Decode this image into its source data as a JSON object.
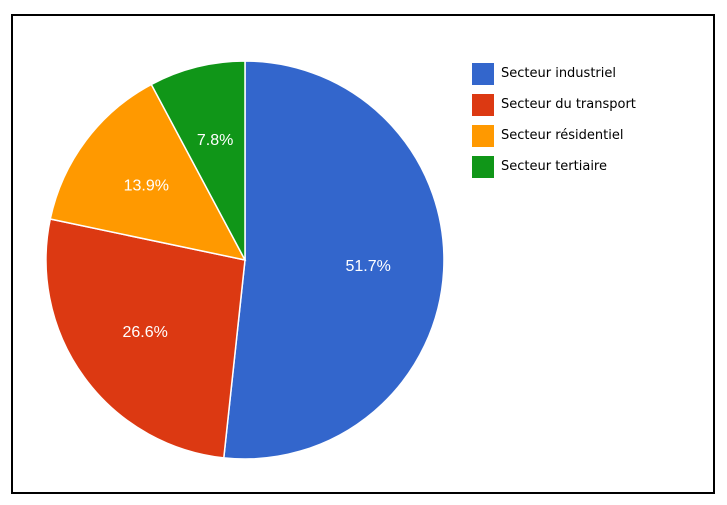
{
  "chart_data": {
    "type": "pie",
    "title": "",
    "legend_position": "right",
    "slices": [
      {
        "label": "Secteur industriel",
        "value": 51.7,
        "value_label": "51.7%",
        "color": "#3366cc"
      },
      {
        "label": "Secteur du transport",
        "value": 26.6,
        "value_label": "26.6%",
        "color": "#dc3912"
      },
      {
        "label": "Secteur résidentiel",
        "value": 13.9,
        "value_label": "13.9%",
        "color": "#ff9900"
      },
      {
        "label": "Secteur tertiaire",
        "value": 7.8,
        "value_label": "7.8%",
        "color": "#109618"
      }
    ]
  }
}
